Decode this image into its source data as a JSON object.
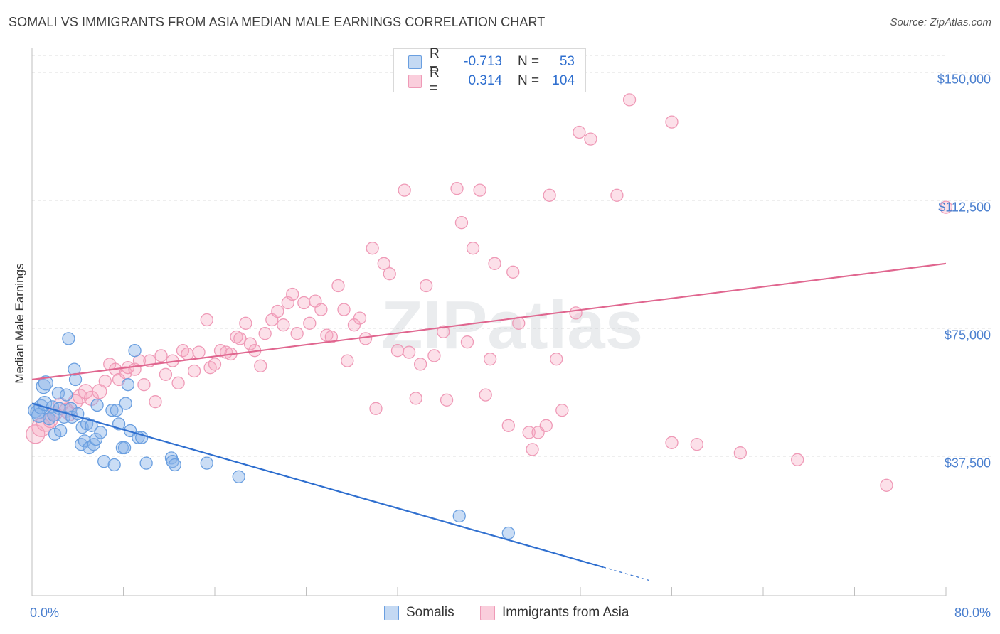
{
  "chart_data": {
    "type": "scatter",
    "title": "SOMALI VS IMMIGRANTS FROM ASIA MEDIAN MALE EARNINGS CORRELATION CHART",
    "source": "Source: ZipAtlas.com",
    "ylabel": "Median Male Earnings",
    "xlim": [
      0,
      80
    ],
    "ylim": [
      0,
      155000
    ],
    "x_tick_labels": [
      "0.0%",
      "80.0%"
    ],
    "y_ticks": [
      {
        "value": 37500,
        "label": "$37,500"
      },
      {
        "value": 75000,
        "label": "$75,000"
      },
      {
        "value": 112500,
        "label": "$112,500"
      },
      {
        "value": 150000,
        "label": "$150,000"
      }
    ],
    "grid": true,
    "watermark": "ZIPatlas",
    "legend": {
      "r_label": "R =",
      "n_label": "N =",
      "entries": [
        {
          "r": "-0.713",
          "n": "53"
        },
        {
          "r": "0.314",
          "n": "104"
        }
      ]
    },
    "colors": {
      "somali_fill": "rgba(137,180,232,0.45)",
      "somali_stroke": "#6a9fe0",
      "somali_line": "#2f6fcf",
      "asia_fill": "rgba(246,166,192,0.35)",
      "asia_stroke": "#ef9ab7",
      "asia_line": "#e0668f",
      "tick_label": "#4a7fcf",
      "grid": "#dcdcdc"
    },
    "series": [
      {
        "name": "Somalis",
        "trend": {
          "x0": 0,
          "y0": 53000,
          "x1": 50,
          "y1": 5000,
          "dash_to_x": 54
        },
        "points": [
          [
            0.3,
            51000
          ],
          [
            0.5,
            50500
          ],
          [
            0.6,
            49500
          ],
          [
            0.8,
            52000
          ],
          [
            1.0,
            58000
          ],
          [
            1.1,
            53000
          ],
          [
            1.2,
            59000
          ],
          [
            1.5,
            48500
          ],
          [
            1.8,
            52000
          ],
          [
            1.9,
            49500
          ],
          [
            2.0,
            44000
          ],
          [
            2.3,
            56000
          ],
          [
            2.4,
            51500
          ],
          [
            2.5,
            45000
          ],
          [
            2.8,
            49000
          ],
          [
            3.0,
            55500
          ],
          [
            3.2,
            72000
          ],
          [
            3.4,
            51500
          ],
          [
            3.5,
            49000
          ],
          [
            3.7,
            63000
          ],
          [
            3.8,
            60000
          ],
          [
            4.0,
            50000
          ],
          [
            4.3,
            41000
          ],
          [
            4.4,
            46000
          ],
          [
            4.6,
            42000
          ],
          [
            4.8,
            47000
          ],
          [
            5.0,
            40000
          ],
          [
            5.2,
            46500
          ],
          [
            5.4,
            41000
          ],
          [
            5.6,
            42500
          ],
          [
            5.7,
            52500
          ],
          [
            6.0,
            44500
          ],
          [
            6.3,
            36000
          ],
          [
            7.0,
            51000
          ],
          [
            7.2,
            35000
          ],
          [
            7.4,
            51000
          ],
          [
            7.6,
            47000
          ],
          [
            7.9,
            40000
          ],
          [
            8.1,
            40000
          ],
          [
            8.2,
            53000
          ],
          [
            8.4,
            58500
          ],
          [
            8.6,
            45000
          ],
          [
            9.0,
            68500
          ],
          [
            9.3,
            43000
          ],
          [
            9.6,
            43000
          ],
          [
            10.0,
            35500
          ],
          [
            12.2,
            37000
          ],
          [
            12.3,
            36000
          ],
          [
            12.5,
            35000
          ],
          [
            15.3,
            35500
          ],
          [
            18.1,
            31500
          ],
          [
            37.4,
            20000
          ],
          [
            41.7,
            15000
          ]
        ]
      },
      {
        "name": "Immigrants from Asia",
        "trend": {
          "x0": 0,
          "y0": 60000,
          "x1": 80,
          "y1": 94000
        },
        "points": [
          [
            0.3,
            44000
          ],
          [
            0.8,
            46000
          ],
          [
            1.2,
            47500
          ],
          [
            1.6,
            48000
          ],
          [
            2.0,
            50000
          ],
          [
            2.5,
            52500
          ],
          [
            3.0,
            51000
          ],
          [
            3.3,
            50000
          ],
          [
            3.8,
            53500
          ],
          [
            4.2,
            55000
          ],
          [
            4.7,
            56500
          ],
          [
            5.2,
            54500
          ],
          [
            5.9,
            56500
          ],
          [
            6.4,
            59500
          ],
          [
            6.8,
            64500
          ],
          [
            7.3,
            63000
          ],
          [
            7.6,
            60000
          ],
          [
            8.2,
            62000
          ],
          [
            8.4,
            63500
          ],
          [
            9.0,
            63000
          ],
          [
            9.4,
            65500
          ],
          [
            9.8,
            58500
          ],
          [
            10.3,
            65500
          ],
          [
            10.8,
            53500
          ],
          [
            11.3,
            67000
          ],
          [
            11.7,
            61500
          ],
          [
            12.3,
            65500
          ],
          [
            12.8,
            59000
          ],
          [
            13.2,
            68500
          ],
          [
            13.6,
            67500
          ],
          [
            14.2,
            62500
          ],
          [
            14.6,
            68000
          ],
          [
            15.3,
            77500
          ],
          [
            15.6,
            63500
          ],
          [
            16.0,
            64500
          ],
          [
            16.5,
            68500
          ],
          [
            17.0,
            68000
          ],
          [
            17.4,
            67500
          ],
          [
            17.9,
            72500
          ],
          [
            18.2,
            72000
          ],
          [
            18.7,
            76500
          ],
          [
            19.1,
            70500
          ],
          [
            19.5,
            68500
          ],
          [
            20.0,
            64000
          ],
          [
            20.4,
            73500
          ],
          [
            21.0,
            77500
          ],
          [
            21.5,
            80000
          ],
          [
            22.0,
            76000
          ],
          [
            22.4,
            82500
          ],
          [
            22.8,
            85000
          ],
          [
            23.2,
            73500
          ],
          [
            23.8,
            82500
          ],
          [
            24.3,
            76500
          ],
          [
            24.8,
            83000
          ],
          [
            25.3,
            80500
          ],
          [
            25.8,
            73000
          ],
          [
            26.2,
            72500
          ],
          [
            26.8,
            87500
          ],
          [
            27.3,
            80500
          ],
          [
            27.6,
            65500
          ],
          [
            28.2,
            76000
          ],
          [
            28.7,
            78000
          ],
          [
            29.2,
            72000
          ],
          [
            29.8,
            98500
          ],
          [
            30.1,
            51500
          ],
          [
            30.8,
            94000
          ],
          [
            31.3,
            91000
          ],
          [
            32.0,
            68500
          ],
          [
            32.6,
            115500
          ],
          [
            33.0,
            68000
          ],
          [
            33.6,
            54500
          ],
          [
            34.0,
            64500
          ],
          [
            34.5,
            87500
          ],
          [
            35.2,
            67000
          ],
          [
            36.0,
            74000
          ],
          [
            36.3,
            54000
          ],
          [
            37.2,
            116000
          ],
          [
            37.6,
            106000
          ],
          [
            38.1,
            71000
          ],
          [
            38.6,
            98500
          ],
          [
            39.2,
            115500
          ],
          [
            39.7,
            55500
          ],
          [
            40.1,
            66000
          ],
          [
            40.5,
            94000
          ],
          [
            41.7,
            46500
          ],
          [
            42.1,
            91500
          ],
          [
            42.6,
            76500
          ],
          [
            43.5,
            44500
          ],
          [
            43.8,
            39500
          ],
          [
            44.3,
            44500
          ],
          [
            45.0,
            46500
          ],
          [
            45.3,
            114000
          ],
          [
            45.9,
            66000
          ],
          [
            46.4,
            51000
          ],
          [
            47.6,
            79500
          ],
          [
            47.9,
            132500
          ],
          [
            48.9,
            130500
          ],
          [
            51.2,
            114000
          ],
          [
            52.3,
            142000
          ],
          [
            56.0,
            135500
          ],
          [
            56.0,
            41500
          ],
          [
            58.2,
            41000
          ],
          [
            62.0,
            38500
          ],
          [
            67.0,
            36500
          ],
          [
            74.8,
            29000
          ],
          [
            80.0,
            110500
          ]
        ]
      }
    ]
  },
  "ui": {
    "bottom_legend": [
      "Somalis",
      "Immigrants from Asia"
    ]
  }
}
